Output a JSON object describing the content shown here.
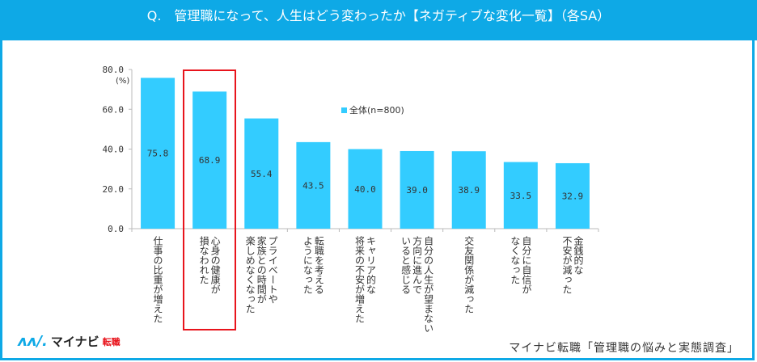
{
  "header": {
    "title": "Q.　管理職になって、人生はどう変わったか【ネガティブな変化一覧】（各SA）"
  },
  "chart_data": {
    "type": "bar",
    "title": "Q.　管理職になって、人生はどう変わったか【ネガティブな変化一覧】（各SA）",
    "ylabel": "(%)",
    "ylim": [
      0,
      80
    ],
    "yticks": [
      "0.0",
      "20.0",
      "40.0",
      "60.0",
      "80.0"
    ],
    "legend": "top-center",
    "series": [
      {
        "name": "全体(n=800)",
        "color": "#33CCFF",
        "values": [
          75.8,
          68.9,
          55.4,
          43.5,
          40.0,
          39.0,
          38.9,
          33.5,
          32.9
        ]
      }
    ],
    "categories": [
      "仕事の比重が増えた",
      "心身の健康が\n損なわれた",
      "プライベートや\n家族との時間が\n楽しめなくなった",
      "転職を考える\nようになった",
      "キャリア的な\n将来の不安が増えた",
      "自分の人生が望まない\n方向に進んで\nいると感じる",
      "交友関係が減った",
      "自分に自信が\nなくなった",
      "金銭的な\n不安が減った"
    ],
    "labels": [
      "75.8",
      "68.9",
      "55.4",
      "43.5",
      "40.0",
      "39.0",
      "38.9",
      "33.5",
      "32.9"
    ],
    "highlighted_category": 1
  },
  "footer": {
    "logo": "マイナビ転職",
    "logo_main": "マイナビ",
    "logo_sub": "転職",
    "source": "マイナビ転職「管理職の悩みと実態調査」"
  }
}
